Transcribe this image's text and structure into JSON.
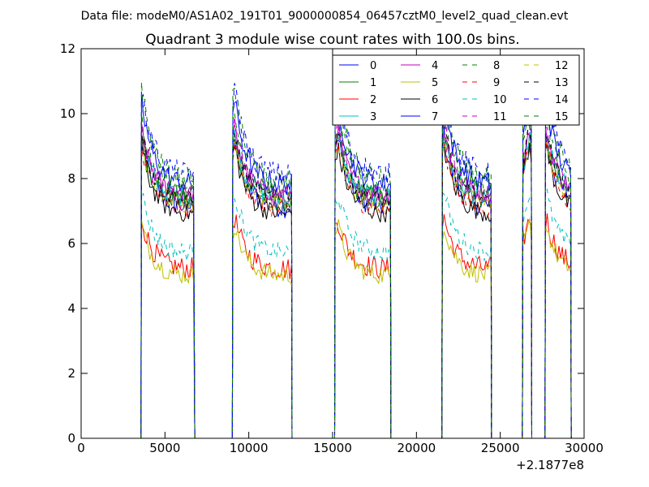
{
  "figure": {
    "suptitle": "Data file: modeM0/AS1A02_191T01_9000000854_06457cztM0_level2_quad_clean.evt",
    "title": "Quadrant 3 module wise count rates with 100.0s bins."
  },
  "chart_data": {
    "type": "line",
    "title": "Quadrant 3 module wise count rates with 100.0s bins.",
    "xlabel": "",
    "ylabel": "",
    "x_offset_label": "+2.1877e8",
    "xlim": [
      0,
      30000
    ],
    "ylim": [
      0,
      12
    ],
    "xticks": [
      0,
      5000,
      10000,
      15000,
      20000,
      25000,
      30000
    ],
    "yticks": [
      0,
      2,
      4,
      6,
      8,
      10,
      12
    ],
    "grid": false,
    "legend_position": "top-right",
    "legend_columns": 4,
    "segments": [
      {
        "start": 3600,
        "end": 6750,
        "peak_at": 3600
      },
      {
        "start": 9050,
        "end": 12550,
        "peak_at": 9150
      },
      {
        "start": 15150,
        "end": 18450,
        "peak_at": 15300
      },
      {
        "start": 21550,
        "end": 24450,
        "peak_at": 21650
      },
      {
        "start": 26350,
        "end": 26850,
        "peak_at": 26750
      },
      {
        "start": 27700,
        "end": 29200,
        "peak_at": 27750
      }
    ],
    "series": [
      {
        "name": "0",
        "color": "#0000ff",
        "dash": "solid",
        "level": 7.1,
        "peak": 9.3,
        "noise": 0.35
      },
      {
        "name": "1",
        "color": "#008000",
        "dash": "solid",
        "level": 7.3,
        "peak": 9.2,
        "noise": 0.35
      },
      {
        "name": "2",
        "color": "#ff0000",
        "dash": "solid",
        "level": 5.2,
        "peak": 6.8,
        "noise": 0.35
      },
      {
        "name": "3",
        "color": "#00bfbf",
        "dash": "solid",
        "level": 7.4,
        "peak": 9.3,
        "noise": 0.35
      },
      {
        "name": "4",
        "color": "#bf00bf",
        "dash": "solid",
        "level": 7.5,
        "peak": 9.5,
        "noise": 0.3
      },
      {
        "name": "5",
        "color": "#bfbf00",
        "dash": "solid",
        "level": 5.0,
        "peak": 6.6,
        "noise": 0.3
      },
      {
        "name": "6",
        "color": "#000000",
        "dash": "solid",
        "level": 6.9,
        "peak": 9.0,
        "noise": 0.3
      },
      {
        "name": "7",
        "color": "#0000ff",
        "dash": "solid",
        "level": 7.8,
        "peak": 10.4,
        "noise": 0.35
      },
      {
        "name": "8",
        "color": "#008000",
        "dash": "dashed",
        "level": 7.6,
        "peak": 10.0,
        "noise": 0.35
      },
      {
        "name": "9",
        "color": "#ff0000",
        "dash": "dashed",
        "level": 7.0,
        "peak": 9.1,
        "noise": 0.3
      },
      {
        "name": "10",
        "color": "#00bfbf",
        "dash": "dashed",
        "level": 5.7,
        "peak": 7.6,
        "noise": 0.3
      },
      {
        "name": "11",
        "color": "#bf00bf",
        "dash": "dashed",
        "level": 7.4,
        "peak": 9.7,
        "noise": 0.3
      },
      {
        "name": "12",
        "color": "#bfbf00",
        "dash": "dashed",
        "level": 7.2,
        "peak": 9.2,
        "noise": 0.3
      },
      {
        "name": "13",
        "color": "#000000",
        "dash": "dashed",
        "level": 7.3,
        "peak": 9.6,
        "noise": 0.3
      },
      {
        "name": "14",
        "color": "#0000ff",
        "dash": "dashed",
        "level": 8.1,
        "peak": 10.8,
        "noise": 0.35
      },
      {
        "name": "15",
        "color": "#008000",
        "dash": "dashed",
        "level": 7.9,
        "peak": 10.9,
        "noise": 0.35
      }
    ]
  }
}
